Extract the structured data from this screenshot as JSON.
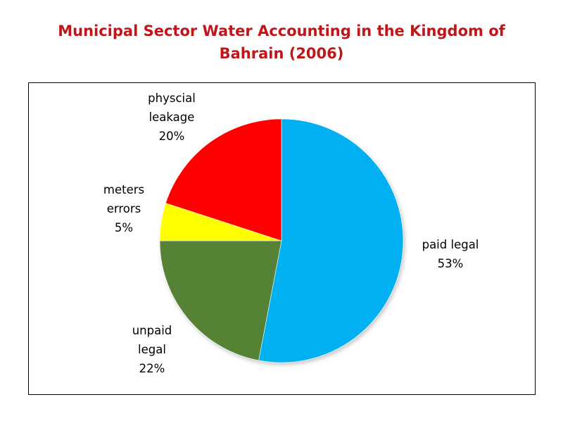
{
  "title": {
    "line1": "Municipal Sector Water Accounting in the Kingdom of",
    "line2": "Bahrain (2006)"
  },
  "chart_data": {
    "type": "pie",
    "title": "Municipal Sector Water Accounting in the Kingdom of Bahrain (2006)",
    "start_angle_deg": 0,
    "direction": "clockwise",
    "slices": [
      {
        "label": "paid legal",
        "value": 53,
        "percent_label": "53%",
        "color": "#00b0f0",
        "label_lines": [
          "paid legal",
          "53%"
        ]
      },
      {
        "label": "unpaid legal",
        "value": 22,
        "percent_label": "22%",
        "color": "#548235",
        "label_lines": [
          "unpaid",
          "legal",
          "22%"
        ]
      },
      {
        "label": "meters errors",
        "value": 5,
        "percent_label": "5%",
        "color": "#ffff00",
        "label_lines": [
          "meters",
          "errors",
          "5%"
        ]
      },
      {
        "label": "physcial leakage",
        "value": 20,
        "percent_label": "20%",
        "color": "#ff0000",
        "label_lines": [
          "physcial",
          "leakage",
          "20%"
        ]
      }
    ],
    "legend": "none",
    "data_labels": "outside"
  }
}
